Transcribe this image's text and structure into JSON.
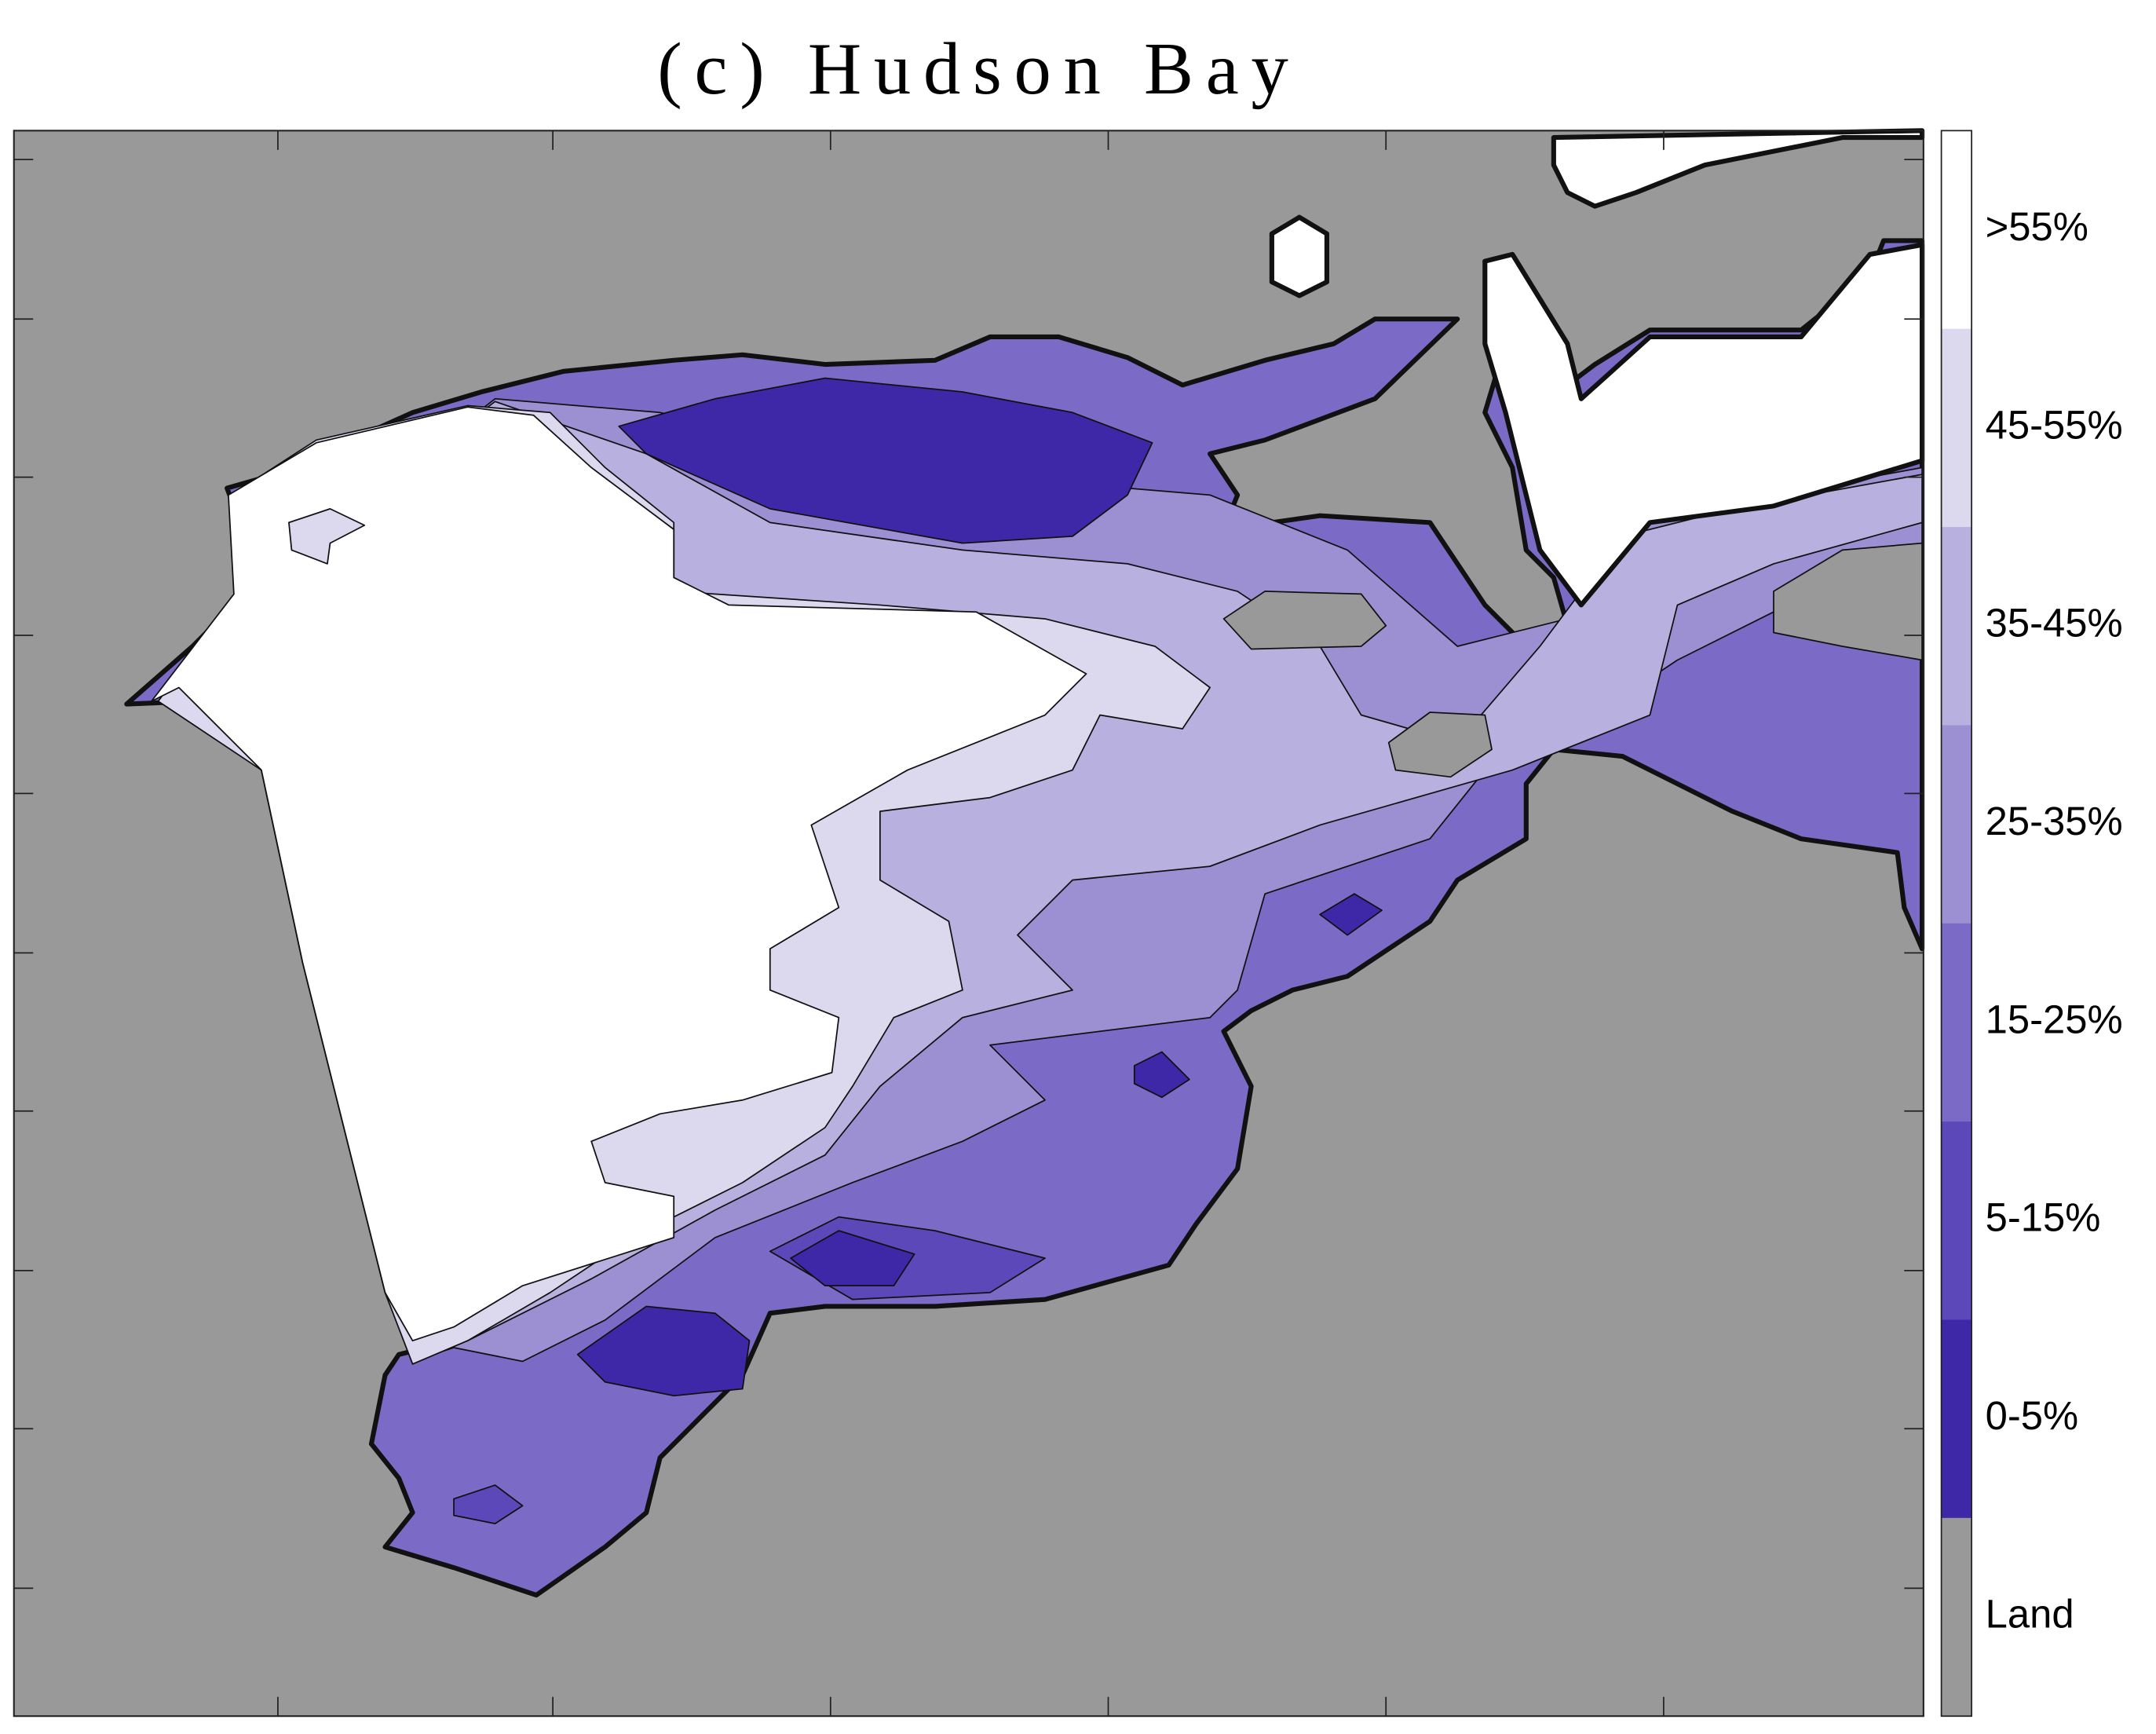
{
  "title": "(c) Hudson Bay",
  "colorbar": [
    {
      "label": ">55%",
      "color": "#ffffff"
    },
    {
      "label": "45-55%",
      "color": "#dcd9ef"
    },
    {
      "label": "35-45%",
      "color": "#b8b1e0"
    },
    {
      "label": "25-35%",
      "color": "#9c90d3"
    },
    {
      "label": "15-25%",
      "color": "#7b6bc6"
    },
    {
      "label": "5-15%",
      "color": "#5c48b8"
    },
    {
      "label": "0-5%",
      "color": "#3f28a8"
    },
    {
      "label": "Land",
      "color": "#999999"
    }
  ]
}
